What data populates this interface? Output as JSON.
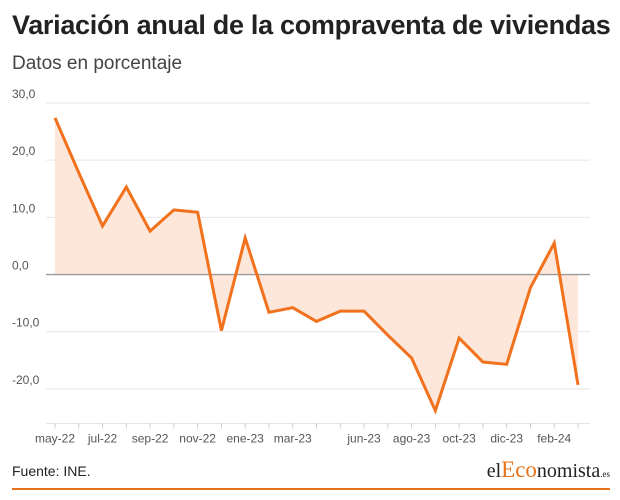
{
  "header": {
    "title": "Variación anual de la compraventa de viviendas",
    "subtitle": "Datos en porcentaje"
  },
  "footer": {
    "source": "Fuente: INE.",
    "brand_prefix": "el",
    "brand_accent": "Eco",
    "brand_suffix": "nomista",
    "brand_tld": ".es"
  },
  "colors": {
    "line": "#f2711c",
    "area": "#fde7db",
    "brand_accent": "#e8731a",
    "zero_line": "#9a9a9a",
    "grid": "#e6e6e6"
  },
  "chart_data": {
    "type": "area",
    "title": "Variación anual de la compraventa de viviendas",
    "subtitle": "Datos en porcentaje",
    "xlabel": "",
    "ylabel": "",
    "x": [
      "may-22",
      "jun-22",
      "jul-22",
      "ago-22",
      "sep-22",
      "oct-22",
      "nov-22",
      "dic-22",
      "ene-23",
      "feb-23",
      "mar-23",
      "abr-23",
      "may-23",
      "jun-23",
      "jul-23",
      "ago-23",
      "sep-23",
      "oct-23",
      "nov-23",
      "dic-23",
      "ene-24",
      "feb-24",
      "mar-24"
    ],
    "x_tick_labels": [
      "may-22",
      "jul-22",
      "sep-22",
      "nov-22",
      "ene-23",
      "mar-23",
      "jun-23",
      "ago-23",
      "oct-23",
      "dic-23",
      "feb-24"
    ],
    "series": [
      {
        "values": [
          27.4,
          17.8,
          8.5,
          15.3,
          7.6,
          11.3,
          10.9,
          -9.8,
          6.4,
          -6.6,
          -5.8,
          -8.2,
          -6.4,
          -6.4,
          -10.6,
          -14.6,
          -23.8,
          -11.1,
          -15.3,
          -15.7,
          -2.3,
          5.5,
          -19.3
        ]
      }
    ],
    "ylim": [
      -25,
      30
    ],
    "y_ticks": [
      30,
      20,
      10,
      0,
      -10,
      -20
    ],
    "y_tick_labels": [
      "30,0",
      "20,0",
      "10,0",
      "0,0",
      "-10,0",
      "-20,0"
    ],
    "grid": true,
    "legend": "none"
  }
}
